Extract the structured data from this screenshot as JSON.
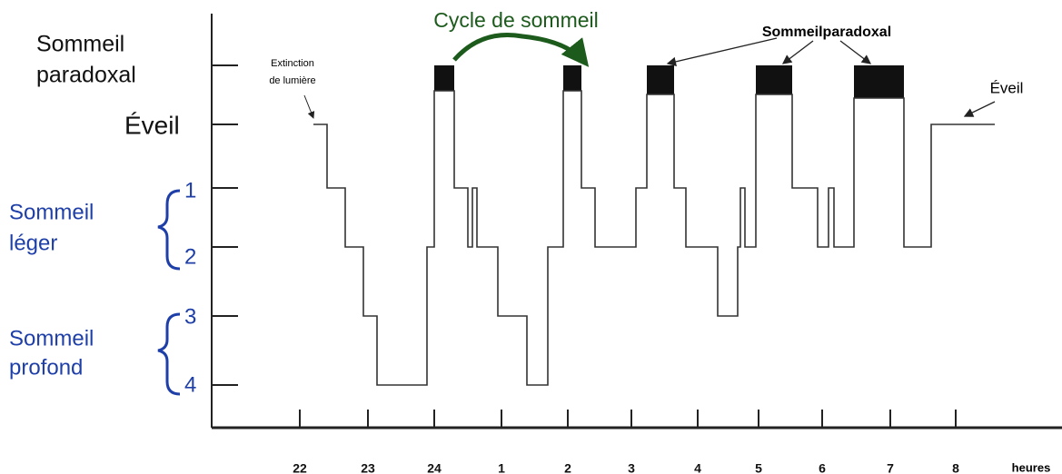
{
  "title": "Cycle de sommeil",
  "levels": {
    "rem": [
      "Sommeil",
      "paradoxal"
    ],
    "wake": "Éveil",
    "stage1": "1",
    "stage2": "2",
    "stage3": "3",
    "stage4": "4"
  },
  "groups": {
    "light": [
      "Sommeil",
      "léger"
    ],
    "deep": [
      "Sommeil",
      "profond"
    ]
  },
  "annotations": {
    "lights_off": [
      "Extinction",
      "de lumière"
    ],
    "rem": "Sommeilparadoxal",
    "wake": "Éveil"
  },
  "x_axis": {
    "ticks": [
      "22",
      "23",
      "24",
      "1",
      "2",
      "3",
      "4",
      "5",
      "6",
      "7",
      "8"
    ],
    "unit": "heures"
  }
}
